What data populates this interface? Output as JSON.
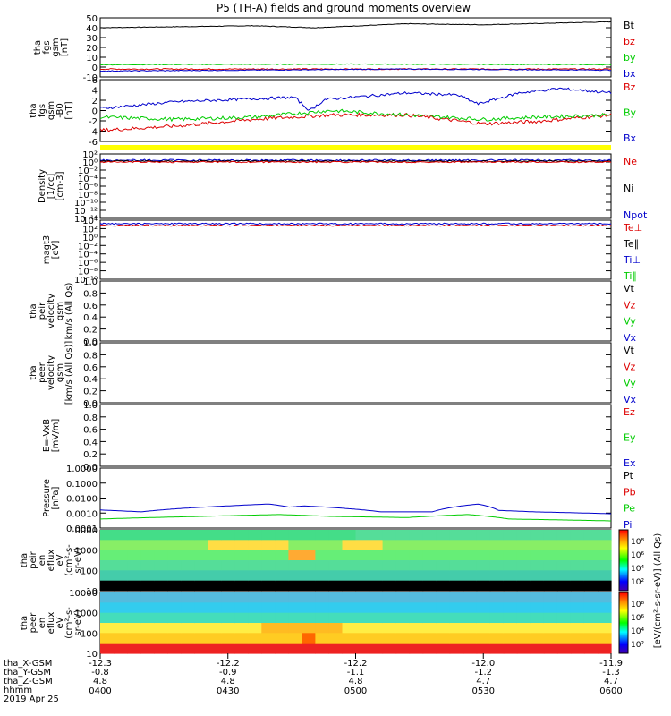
{
  "title": "P5 (TH-A) fields and ground moments overview",
  "colors": {
    "black": "#000000",
    "red": "#dd0000",
    "green": "#00cc00",
    "blue": "#0000cc",
    "yellow": "#ffff00"
  },
  "x_axis": {
    "times": [
      "0400",
      "0430",
      "0500",
      "0530",
      "0600"
    ],
    "row_labels": [
      "tha_X-GSM",
      "tha_Y-GSM",
      "tha_Z-GSM",
      "hhmm",
      "2019 Apr 25"
    ],
    "x_gsm": [
      "-12.3",
      "-12.2",
      "-12.2",
      "-12.0",
      "-11.9"
    ],
    "y_gsm": [
      "-0.8",
      "-0.9",
      "-1.1",
      "-1.2",
      "-1.3"
    ],
    "z_gsm": [
      "4.8",
      "4.8",
      "4.8",
      "4.7",
      "4.7"
    ]
  },
  "panels": {
    "fgs": {
      "ylabel": [
        "tha",
        "fgs",
        "gsm",
        "[nT]"
      ],
      "ticks": [
        "50",
        "40",
        "30",
        "20",
        "10",
        "0",
        "-10"
      ],
      "legend": [
        "Bt",
        "bz",
        "by",
        "bx"
      ]
    },
    "fgs2": {
      "ylabel": [
        "tha",
        "fgs",
        "gsm",
        "-B0",
        "[nT]"
      ],
      "ticks": [
        "6",
        "4",
        "2",
        "0",
        "-2",
        "-4",
        "-6"
      ],
      "legend": [
        "Bz",
        "By",
        "Bx"
      ]
    },
    "density": {
      "ylabel": [
        "Density",
        "[1/cc]",
        "[cm-3]"
      ],
      "ticks": [
        "10²",
        "10⁰",
        "10⁻²",
        "10⁻⁴",
        "10⁻⁶",
        "10⁻⁸",
        "10⁻¹⁰",
        "10⁻¹²",
        "10⁻¹⁴"
      ],
      "legend": [
        "Ne",
        "Ni",
        "Npot"
      ]
    },
    "temp": {
      "ylabel": [
        "magt3",
        "[eV]"
      ],
      "ticks": [
        "10⁴",
        "10²",
        "10⁰",
        "10⁻²",
        "10⁻⁴",
        "10⁻⁶",
        "10⁻⁸",
        "10⁻¹⁰"
      ],
      "legend": [
        "Te⊥",
        "Te∥",
        "Ti⊥",
        "Ti∥"
      ]
    },
    "peir_vel": {
      "ylabel": [
        "tha",
        "peir",
        "velocity",
        "gsm",
        "km/s (All Qs)"
      ],
      "ticks": [
        "1.0",
        "0.8",
        "0.6",
        "0.4",
        "0.2",
        "0.0"
      ],
      "legend": [
        "Vt",
        "Vz",
        "Vy",
        "Vx"
      ]
    },
    "peer_vel": {
      "ylabel": [
        "tha",
        "peer",
        "velocity",
        "gsm",
        "[km/s (All Qs)]"
      ],
      "ticks": [
        "1.0",
        "0.8",
        "0.6",
        "0.4",
        "0.2",
        "0.0"
      ],
      "legend": [
        "Vt",
        "Vz",
        "Vy",
        "Vx"
      ]
    },
    "efield": {
      "ylabel": [
        "E=-VxB",
        "[mV/m]"
      ],
      "ticks": [
        "1.0",
        "0.8",
        "0.6",
        "0.4",
        "0.2",
        "0.0"
      ],
      "legend": [
        "Ez",
        "Ey",
        "Ex"
      ]
    },
    "pressure": {
      "ylabel": [
        "Pressure",
        "[nPa]"
      ],
      "ticks": [
        "1.0000",
        "0.1000",
        "0.0100",
        "0.0010",
        "0.0001"
      ],
      "legend": [
        "Pt",
        "Pb",
        "Pe",
        "Pi"
      ]
    },
    "peir_spec": {
      "ylabel": [
        "tha",
        "peir",
        "en",
        "eflux",
        "eV",
        "(cm²-s-",
        "sr-eV)"
      ],
      "ticks": [
        "10000",
        "1000",
        "100",
        "10"
      ]
    },
    "peer_spec": {
      "ylabel": [
        "tha",
        "peer",
        "en",
        "eflux",
        "eV",
        "(cm²-s-",
        "sr-eV)"
      ],
      "ticks": [
        "10000",
        "1000",
        "100",
        "10"
      ]
    },
    "colorbar": {
      "ticks": [
        "10⁸",
        "10⁶",
        "10⁴",
        "10²"
      ],
      "ticks2": [
        "10⁸",
        "10⁶",
        "10⁴",
        "10²"
      ],
      "label": "[eV/(cm²-s-sr-eV)] (All Qs)"
    }
  },
  "chart_data": {
    "type": "line",
    "title": "P5 (TH-A) fields and ground moments overview",
    "x": [
      "0400",
      "0430",
      "0500",
      "0530",
      "0600"
    ],
    "xlabel": "hhmm / 2019 Apr 25",
    "series": [
      {
        "name": "Bt",
        "values": [
          40,
          42,
          45,
          45,
          46
        ]
      },
      {
        "name": "bz",
        "values": [
          -3,
          -2,
          -1,
          -2,
          -3
        ]
      },
      {
        "name": "by",
        "values": [
          2,
          2,
          3,
          3,
          2
        ]
      },
      {
        "name": "bx",
        "values": [
          -4,
          -3,
          -1,
          -3,
          -2
        ]
      },
      {
        "name": "Bz",
        "values": [
          0.5,
          2.5,
          4,
          3.5,
          4
        ]
      },
      {
        "name": "By",
        "values": [
          -2,
          -1.5,
          0,
          -1,
          -1
        ]
      },
      {
        "name": "Bx",
        "values": [
          -4.5,
          -3,
          -1,
          -3,
          -1
        ]
      },
      {
        "name": "Ne",
        "values": [
          1,
          1,
          2,
          1.5,
          1
        ]
      },
      {
        "name": "Pi",
        "values": [
          0.0015,
          0.0035,
          0.003,
          0.0013,
          0.0009
        ]
      },
      {
        "name": "Pe",
        "values": [
          0.0004,
          0.0007,
          0.0006,
          0.0005,
          0.0003
        ]
      }
    ],
    "ylim_Bt": [
      -10,
      50
    ],
    "ylim_B0": [
      -6,
      6
    ],
    "spectrogram_energy_range_eV": [
      10,
      10000
    ]
  }
}
